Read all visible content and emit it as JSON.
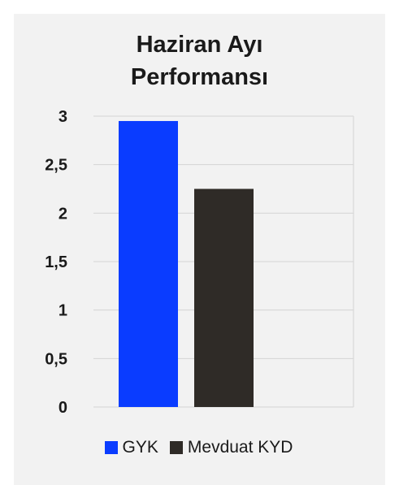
{
  "chart_data": {
    "type": "bar",
    "title_lines": [
      "Haziran Ayı",
      "Performansı"
    ],
    "categories": [
      ""
    ],
    "series": [
      {
        "name": "GYK",
        "values": [
          2.95
        ],
        "color": "#0a3cff"
      },
      {
        "name": "Mevduat KYD",
        "values": [
          2.25
        ],
        "color": "#2f2b27"
      }
    ],
    "ylim": [
      0,
      3
    ],
    "yticks": [
      {
        "value": 0,
        "label": "0"
      },
      {
        "value": 0.5,
        "label": "0,5"
      },
      {
        "value": 1,
        "label": "1"
      },
      {
        "value": 1.5,
        "label": "1,5"
      },
      {
        "value": 2,
        "label": "2"
      },
      {
        "value": 2.5,
        "label": "2,5"
      },
      {
        "value": 3,
        "label": "3"
      }
    ],
    "grid": true,
    "legend_position": "bottom"
  }
}
